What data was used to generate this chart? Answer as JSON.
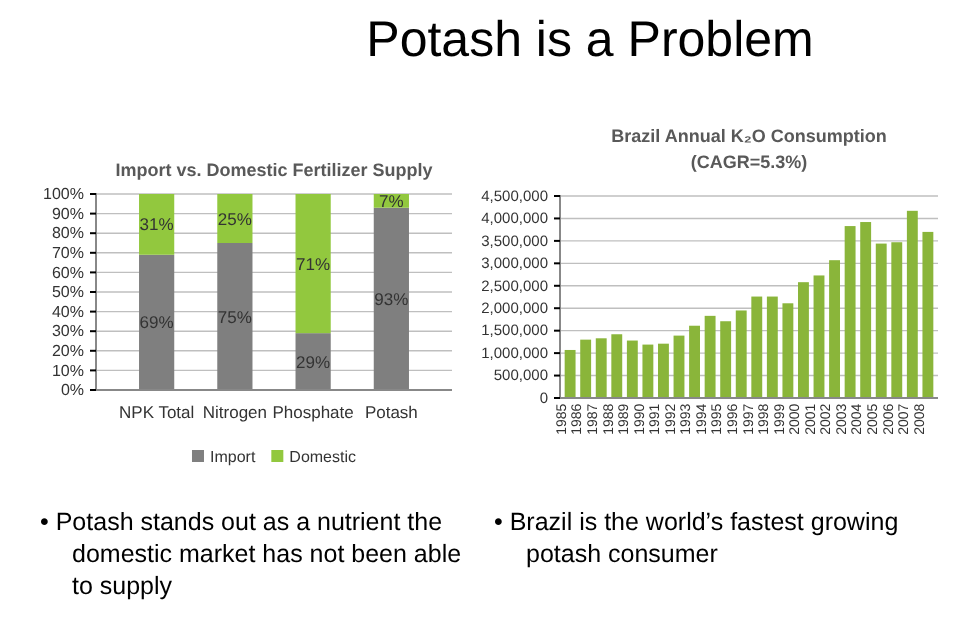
{
  "chart_data": [
    {
      "type": "other",
      "title": "Potash is a Problem",
      "annotations": [
        "• Potash stands out as a nutrient the domestic market has not been able to supply",
        "• Brazil is the world’s fastest growing potash consumer"
      ]
    },
    {
      "type": "bar",
      "title": "Import vs. Domestic Fertilizer Supply",
      "categories": [
        "NPK Total",
        "Nitrogen",
        "Phosphate",
        "Potash"
      ],
      "stacked": true,
      "grid": "y",
      "legend": "bottom",
      "series": [
        {
          "name": "Import",
          "color": "#7f7f7f",
          "values": [
            69,
            75,
            29,
            93
          ],
          "value_labels": [
            "69%",
            "75%",
            "29%",
            "93%"
          ]
        },
        {
          "name": "Domestic",
          "color": "#92c83e",
          "values": [
            31,
            25,
            71,
            7
          ],
          "value_labels": [
            "31%",
            "25%",
            "71%",
            "7%"
          ]
        }
      ],
      "ylim": [
        0,
        100
      ],
      "yticks": [
        {
          "value": 0,
          "label": "0%"
        },
        {
          "value": 10,
          "label": "10%"
        },
        {
          "value": 20,
          "label": "20%"
        },
        {
          "value": 30,
          "label": "30%"
        },
        {
          "value": 40,
          "label": "40%"
        },
        {
          "value": 50,
          "label": "50%"
        },
        {
          "value": 60,
          "label": "60%"
        },
        {
          "value": 70,
          "label": "70%"
        },
        {
          "value": 80,
          "label": "80%"
        },
        {
          "value": 90,
          "label": "90%"
        },
        {
          "value": 100,
          "label": "100%"
        }
      ]
    },
    {
      "type": "bar",
      "title": "Brazil Annual K₂O Consumption",
      "subtitle": "(CAGR=5.3%)",
      "grid": "y",
      "color": "#8ab53a",
      "categories": [
        "1985",
        "1986",
        "1987",
        "1988",
        "1989",
        "1990",
        "1991",
        "1992",
        "1993",
        "1994",
        "1995",
        "1996",
        "1997",
        "1998",
        "1999",
        "2000",
        "2001",
        "2002",
        "2003",
        "2004",
        "2005",
        "2006",
        "2007",
        "2008"
      ],
      "values": [
        1070000,
        1300000,
        1330000,
        1420000,
        1280000,
        1190000,
        1210000,
        1390000,
        1610000,
        1830000,
        1710000,
        1950000,
        2260000,
        2260000,
        2110000,
        2580000,
        2730000,
        3070000,
        3830000,
        3920000,
        3440000,
        3470000,
        4170000,
        3700000
      ],
      "ylim": [
        0,
        4500000
      ],
      "yticks": [
        0,
        {
          "value": 500000,
          "label": "500,000"
        },
        {
          "value": 1000000,
          "label": "1,000,000"
        },
        {
          "value": 1500000,
          "label": "1,500,000"
        },
        {
          "value": 2000000,
          "label": "2,000,000"
        },
        {
          "value": 2500000,
          "label": "2,500,000"
        },
        {
          "value": 3000000,
          "label": "3,000,000"
        },
        {
          "value": 3500000,
          "label": "3,500,000"
        },
        {
          "value": 4000000,
          "label": "4,000,000"
        },
        {
          "value": 4500000,
          "label": "4,500,000"
        }
      ]
    }
  ]
}
